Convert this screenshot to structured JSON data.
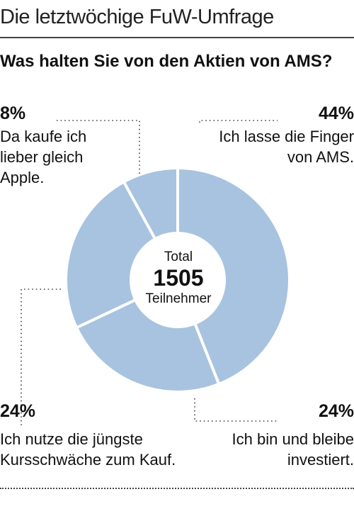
{
  "header": "Die letztwöchige FuW-Umfrage",
  "question": "Was halten Sie von den Aktien von AMS?",
  "center": {
    "label_top": "Total",
    "count": "1505",
    "label_bottom": "Teilnehmer"
  },
  "colors": {
    "slice": "#a7c3df",
    "separator": "#ffffff",
    "text": "#111111"
  },
  "chart_data": {
    "type": "pie",
    "title": "Was halten Sie von den Aktien von AMS?",
    "total": 1505,
    "slices": [
      {
        "label": "Ich lasse die Finger von AMS.",
        "percent_label": "44%",
        "value": 44
      },
      {
        "label": "Ich bin und bleibe investiert.",
        "percent_label": "24%",
        "value": 24
      },
      {
        "label": "Ich nutze die jüngste Kursschwäche zum Kauf.",
        "percent_label": "24%",
        "value": 24
      },
      {
        "label": "Da kaufe ich lieber gleich Apple.",
        "percent_label": "8%",
        "value": 8
      }
    ]
  }
}
